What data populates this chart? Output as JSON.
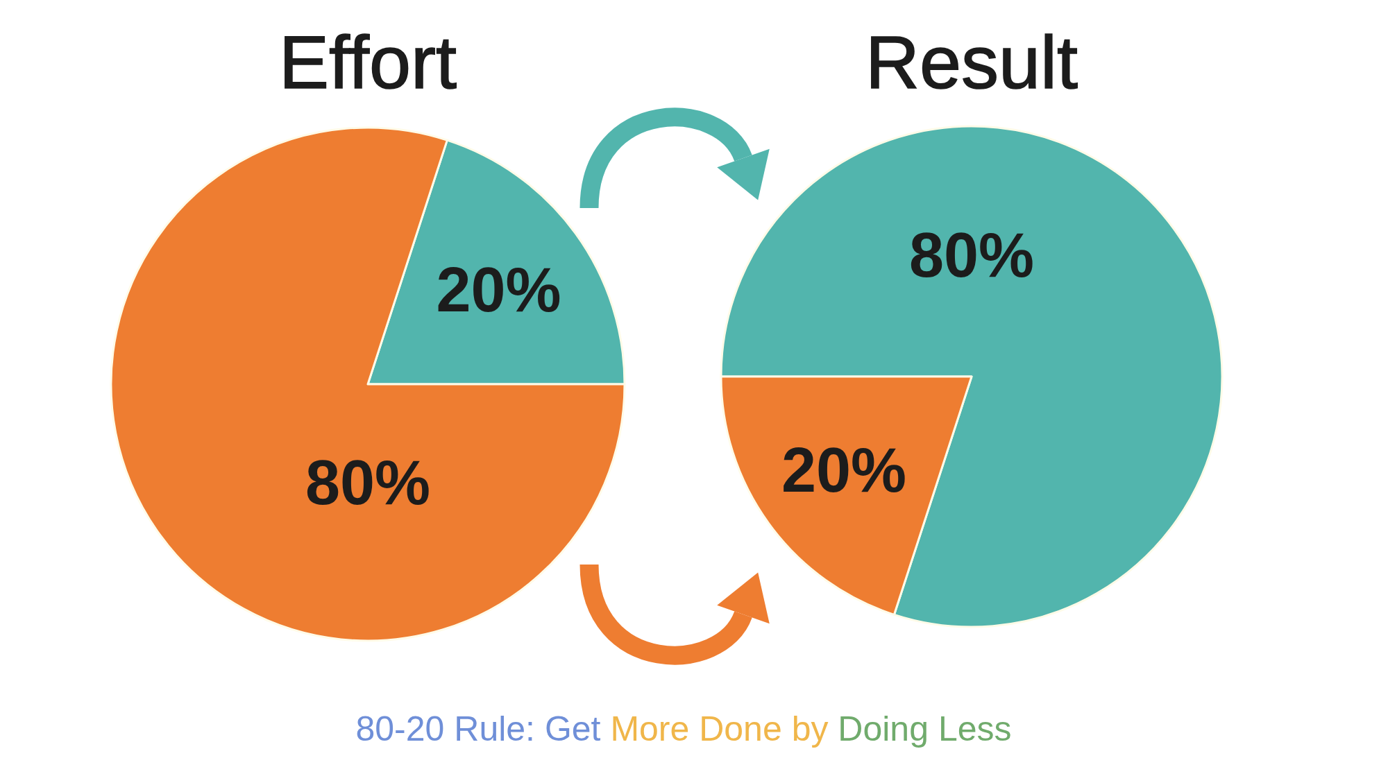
{
  "chart_data": [
    {
      "type": "pie",
      "title": "Effort",
      "categories": [
        null,
        null
      ],
      "values": [
        20,
        80
      ],
      "colors": [
        "#52b5ad",
        "#ee7d31"
      ],
      "value_labels": [
        "20%",
        "80%"
      ],
      "annotations": [
        "80-20 Rule: Get More Done by Doing Less"
      ]
    },
    {
      "type": "pie",
      "title": "Result",
      "categories": [
        null,
        null
      ],
      "values": [
        80,
        20
      ],
      "colors": [
        "#52b5ad",
        "#ee7d31"
      ],
      "value_labels": [
        "80%",
        "20%"
      ]
    }
  ]
}
